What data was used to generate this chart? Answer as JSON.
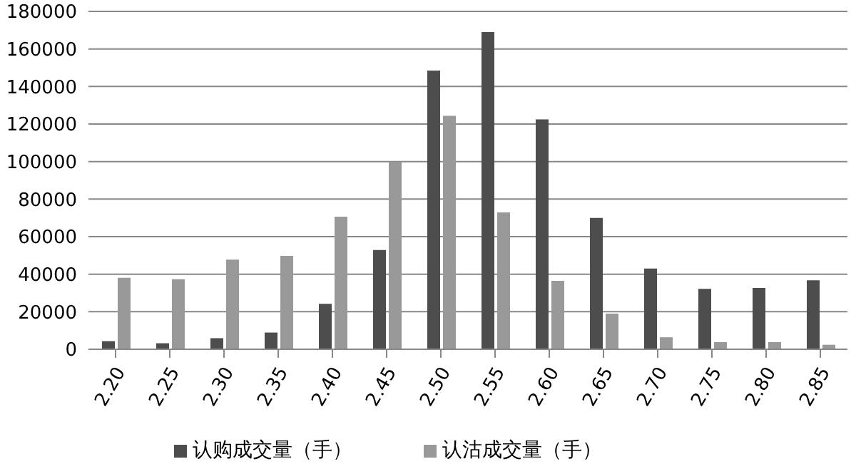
{
  "chart_data": {
    "type": "bar",
    "categories": [
      "2.20",
      "2.25",
      "2.30",
      "2.35",
      "2.40",
      "2.45",
      "2.50",
      "2.55",
      "2.60",
      "2.65",
      "2.70",
      "2.75",
      "2.80",
      "2.85"
    ],
    "series": [
      {
        "name": "认购成交量（手）",
        "color": "#4d4d4d",
        "values": [
          4300,
          3200,
          5900,
          8900,
          24200,
          52900,
          148500,
          169000,
          122500,
          70000,
          43000,
          32200,
          32700,
          36700
        ]
      },
      {
        "name": "认沽成交量（手）",
        "color": "#999999",
        "values": [
          38100,
          37300,
          47800,
          49700,
          70600,
          99900,
          124400,
          72900,
          36500,
          19000,
          6400,
          3800,
          3800,
          2400
        ]
      }
    ],
    "ylim": [
      0,
      180000
    ],
    "yticks": [
      0,
      20000,
      40000,
      60000,
      80000,
      100000,
      120000,
      140000,
      160000,
      180000
    ],
    "grid": "y",
    "legend": "bottom"
  }
}
